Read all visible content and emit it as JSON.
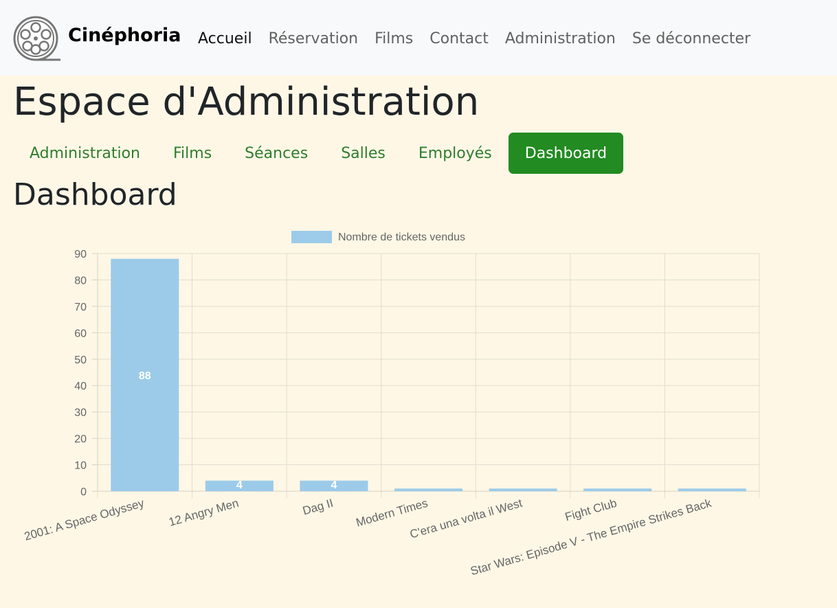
{
  "brand": {
    "name": "Cinéphoria",
    "logo": "film-reel-icon"
  },
  "nav": {
    "items": [
      {
        "label": "Accueil",
        "active": true
      },
      {
        "label": "Réservation",
        "active": false
      },
      {
        "label": "Films",
        "active": false
      },
      {
        "label": "Contact",
        "active": false
      },
      {
        "label": "Administration",
        "active": false
      },
      {
        "label": "Se déconnecter",
        "active": false
      }
    ]
  },
  "page": {
    "title": "Espace d'Administration",
    "section_title": "Dashboard"
  },
  "subtabs": {
    "items": [
      {
        "label": "Administration",
        "active": false
      },
      {
        "label": "Films",
        "active": false
      },
      {
        "label": "Séances",
        "active": false
      },
      {
        "label": "Salles",
        "active": false
      },
      {
        "label": "Employés",
        "active": false
      },
      {
        "label": "Dashboard",
        "active": true
      }
    ]
  },
  "colors": {
    "bar": "#9ccbe9",
    "active_tab": "#228b22",
    "tab_text": "#2e7d2e",
    "background": "#fef7e6"
  },
  "chart_data": {
    "type": "bar",
    "categories": [
      "2001: A Space Odyssey",
      "12 Angry Men",
      "Dag II",
      "Modern Times",
      "C'era una volta il West",
      "Fight Club",
      "Star Wars: Episode V - The Empire Strikes Back"
    ],
    "series": [
      {
        "name": "Nombre de tickets vendus",
        "values": [
          88,
          4,
          4,
          1,
          1,
          1,
          1
        ]
      }
    ],
    "data_labels": [
      "88",
      "4",
      "4",
      "",
      "",
      "",
      ""
    ],
    "ylim": [
      0,
      90
    ],
    "yticks": [
      0,
      10,
      20,
      30,
      40,
      50,
      60,
      70,
      80,
      90
    ],
    "legend": "top-center",
    "grid": true
  }
}
